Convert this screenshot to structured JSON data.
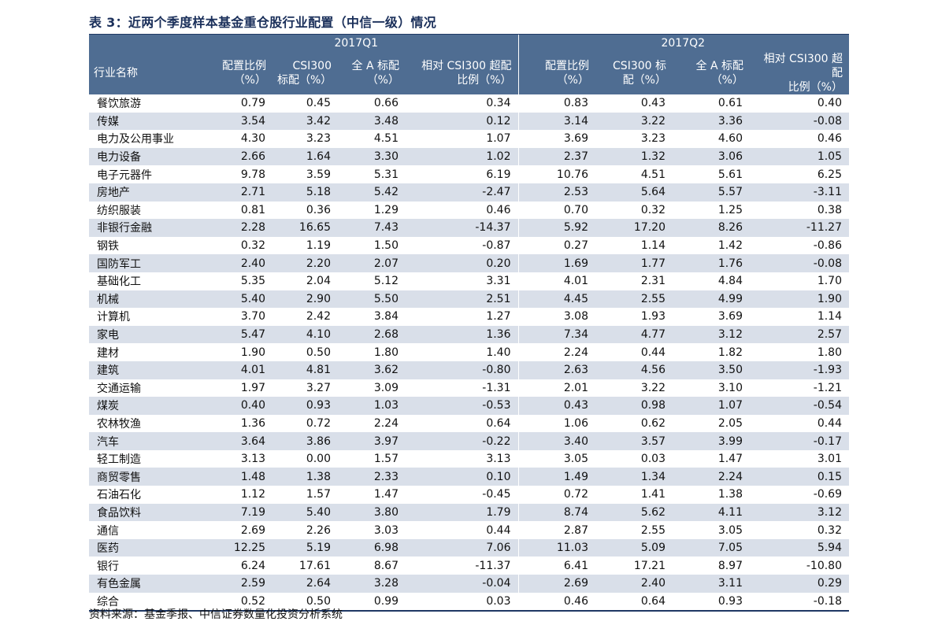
{
  "title": "表 3：近两个季度样本基金重仓股行业配置（中信一级）情况",
  "groups": [
    "2017Q1",
    "2017Q2"
  ],
  "header_first": "行业名称",
  "columns": [
    [
      "配置比例",
      "（%）"
    ],
    [
      "CSI300",
      "标配（%）"
    ],
    [
      "全 A 标配",
      "（%）"
    ],
    [
      "相对 CSI300 超配",
      "比例（%）"
    ],
    [
      "配置比例",
      "（%）"
    ],
    [
      "CSI300 标",
      "配（%）"
    ],
    [
      "全 A 标配",
      "（%）"
    ],
    [
      "相对 CSI300 超配",
      "比例（%）"
    ]
  ],
  "rows": [
    [
      "餐饮旅游",
      "0.79",
      "0.45",
      "0.66",
      "0.34",
      "0.83",
      "0.43",
      "0.61",
      "0.40"
    ],
    [
      "传媒",
      "3.54",
      "3.42",
      "3.48",
      "0.12",
      "3.14",
      "3.22",
      "3.36",
      "-0.08"
    ],
    [
      "电力及公用事业",
      "4.30",
      "3.23",
      "4.51",
      "1.07",
      "3.69",
      "3.23",
      "4.60",
      "0.46"
    ],
    [
      "电力设备",
      "2.66",
      "1.64",
      "3.30",
      "1.02",
      "2.37",
      "1.32",
      "3.06",
      "1.05"
    ],
    [
      "电子元器件",
      "9.78",
      "3.59",
      "5.31",
      "6.19",
      "10.76",
      "4.51",
      "5.61",
      "6.25"
    ],
    [
      "房地产",
      "2.71",
      "5.18",
      "5.42",
      "-2.47",
      "2.53",
      "5.64",
      "5.57",
      "-3.11"
    ],
    [
      "纺织服装",
      "0.81",
      "0.36",
      "1.29",
      "0.46",
      "0.70",
      "0.32",
      "1.25",
      "0.38"
    ],
    [
      "非银行金融",
      "2.28",
      "16.65",
      "7.43",
      "-14.37",
      "5.92",
      "17.20",
      "8.26",
      "-11.27"
    ],
    [
      "钢铁",
      "0.32",
      "1.19",
      "1.50",
      "-0.87",
      "0.27",
      "1.14",
      "1.42",
      "-0.86"
    ],
    [
      "国防军工",
      "2.40",
      "2.20",
      "2.07",
      "0.20",
      "1.69",
      "1.77",
      "1.76",
      "-0.08"
    ],
    [
      "基础化工",
      "5.35",
      "2.04",
      "5.12",
      "3.31",
      "4.01",
      "2.31",
      "4.84",
      "1.70"
    ],
    [
      "机械",
      "5.40",
      "2.90",
      "5.50",
      "2.51",
      "4.45",
      "2.55",
      "4.99",
      "1.90"
    ],
    [
      "计算机",
      "3.70",
      "2.42",
      "3.84",
      "1.27",
      "3.08",
      "1.93",
      "3.69",
      "1.14"
    ],
    [
      "家电",
      "5.47",
      "4.10",
      "2.68",
      "1.36",
      "7.34",
      "4.77",
      "3.12",
      "2.57"
    ],
    [
      "建材",
      "1.90",
      "0.50",
      "1.80",
      "1.40",
      "2.24",
      "0.44",
      "1.82",
      "1.80"
    ],
    [
      "建筑",
      "4.01",
      "4.81",
      "3.62",
      "-0.80",
      "2.63",
      "4.56",
      "3.50",
      "-1.93"
    ],
    [
      "交通运输",
      "1.97",
      "3.27",
      "3.09",
      "-1.31",
      "2.01",
      "3.22",
      "3.10",
      "-1.21"
    ],
    [
      "煤炭",
      "0.40",
      "0.93",
      "1.03",
      "-0.53",
      "0.43",
      "0.98",
      "1.07",
      "-0.54"
    ],
    [
      "农林牧渔",
      "1.36",
      "0.72",
      "2.24",
      "0.64",
      "1.06",
      "0.62",
      "2.05",
      "0.44"
    ],
    [
      "汽车",
      "3.64",
      "3.86",
      "3.97",
      "-0.22",
      "3.40",
      "3.57",
      "3.99",
      "-0.17"
    ],
    [
      "轻工制造",
      "3.13",
      "0.00",
      "1.57",
      "3.13",
      "3.05",
      "0.03",
      "1.47",
      "3.01"
    ],
    [
      "商贸零售",
      "1.48",
      "1.38",
      "2.33",
      "0.10",
      "1.49",
      "1.34",
      "2.24",
      "0.15"
    ],
    [
      "石油石化",
      "1.12",
      "1.57",
      "1.47",
      "-0.45",
      "0.72",
      "1.41",
      "1.38",
      "-0.69"
    ],
    [
      "食品饮料",
      "7.19",
      "5.40",
      "3.80",
      "1.79",
      "8.74",
      "5.62",
      "4.11",
      "3.12"
    ],
    [
      "通信",
      "2.69",
      "2.26",
      "3.03",
      "0.44",
      "2.87",
      "2.55",
      "3.05",
      "0.32"
    ],
    [
      "医药",
      "12.25",
      "5.19",
      "6.98",
      "7.06",
      "11.03",
      "5.09",
      "7.05",
      "5.94"
    ],
    [
      "银行",
      "6.24",
      "17.61",
      "8.67",
      "-11.37",
      "6.41",
      "17.21",
      "8.97",
      "-10.80"
    ],
    [
      "有色金属",
      "2.59",
      "2.64",
      "3.28",
      "-0.04",
      "2.69",
      "2.40",
      "3.11",
      "0.29"
    ],
    [
      "综合",
      "0.52",
      "0.50",
      "0.99",
      "0.03",
      "0.46",
      "0.64",
      "0.93",
      "-0.18"
    ]
  ],
  "source": "资料来源：基金季报、中信证券数量化投资分析系统"
}
